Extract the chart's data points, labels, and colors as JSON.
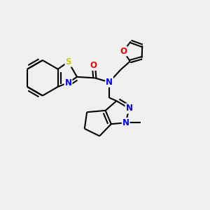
{
  "background_color": "#f0f0f0",
  "atoms": {
    "S": {
      "color": "#cccc00"
    },
    "N": {
      "color": "#0000ff"
    },
    "O": {
      "color": "#ff0000"
    },
    "C": {
      "color": "#000000"
    }
  },
  "bond_color": "#000000",
  "bond_width": 1.5,
  "fig_width": 3.0,
  "fig_height": 3.0,
  "dpi": 100,
  "font_size": 8.5
}
